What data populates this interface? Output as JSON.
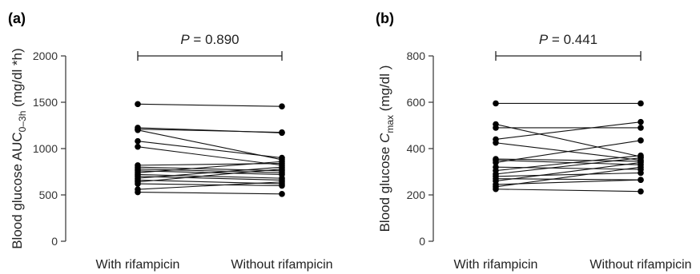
{
  "chart_data": [
    {
      "panel": "(a)",
      "type": "line",
      "subtype": "paired-dot plot",
      "ylabel": "Blood glucose AUC",
      "ylabel_sub": "0–3h",
      "ylabel_unit": " (mg/dl *h)",
      "categories": [
        "With rifampicin",
        "Without rifampicin"
      ],
      "yticks": [
        0,
        500,
        1000,
        1500,
        2000
      ],
      "ylim": [
        0,
        2000
      ],
      "annotation": {
        "p_symbol": "P",
        "p_text": " = 0.890"
      },
      "pairs": [
        [
          1480,
          1455
        ],
        [
          1225,
          1170
        ],
        [
          1210,
          1175
        ],
        [
          1200,
          880
        ],
        [
          1080,
          900
        ],
        [
          1020,
          820
        ],
        [
          820,
          840
        ],
        [
          800,
          760
        ],
        [
          780,
          740
        ],
        [
          760,
          720
        ],
        [
          740,
          860
        ],
        [
          720,
          680
        ],
        [
          700,
          660
        ],
        [
          680,
          800
        ],
        [
          660,
          620
        ],
        [
          640,
          780
        ],
        [
          620,
          600
        ],
        [
          560,
          640
        ],
        [
          530,
          510
        ]
      ]
    },
    {
      "panel": "(b)",
      "type": "line",
      "subtype": "paired-dot plot",
      "ylabel": "Blood glucose ",
      "ylabel_italic": "C",
      "ylabel_sub": "max",
      "ylabel_unit": " (mg/dl )",
      "categories": [
        "With rifampicin",
        "Without rifampicin"
      ],
      "yticks": [
        0,
        200,
        400,
        600,
        800
      ],
      "ylim": [
        0,
        800
      ],
      "annotation": {
        "p_symbol": "P",
        "p_text": " = 0.441"
      },
      "pairs": [
        [
          595,
          595
        ],
        [
          505,
          365
        ],
        [
          490,
          490
        ],
        [
          440,
          515
        ],
        [
          425,
          350
        ],
        [
          355,
          345
        ],
        [
          350,
          330
        ],
        [
          340,
          435
        ],
        [
          320,
          310
        ],
        [
          305,
          370
        ],
        [
          290,
          360
        ],
        [
          280,
          295
        ],
        [
          270,
          265
        ],
        [
          260,
          340
        ],
        [
          245,
          265
        ],
        [
          235,
          320
        ],
        [
          225,
          215
        ]
      ]
    }
  ]
}
